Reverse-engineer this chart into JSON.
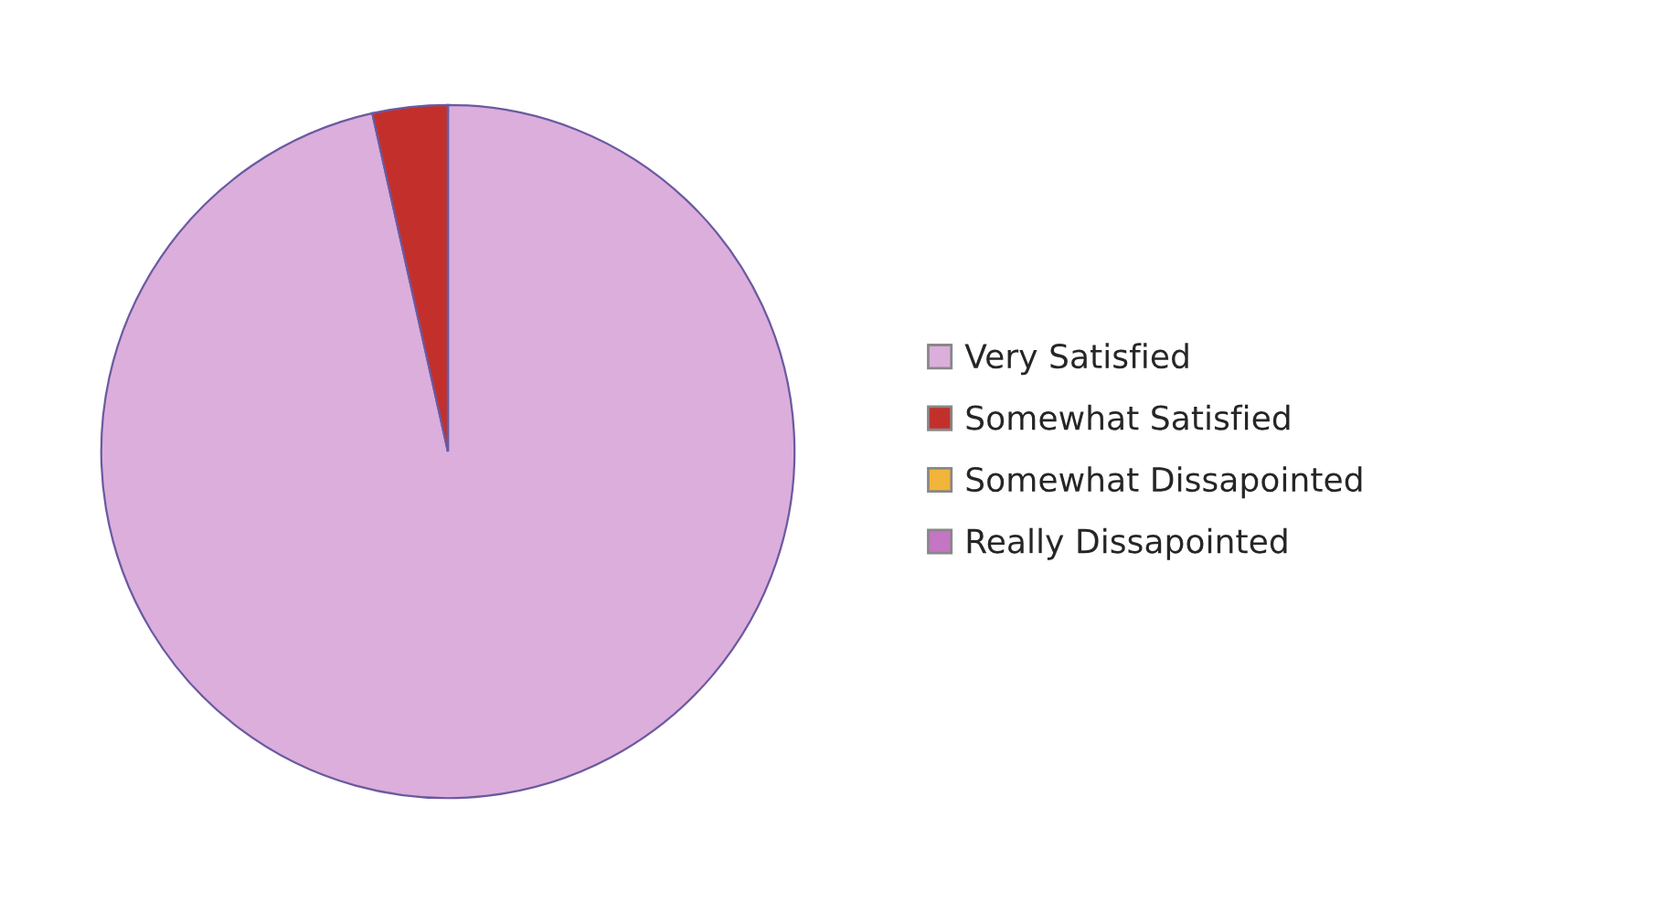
{
  "chart_data": {
    "type": "pie",
    "categories": [
      "Very Satisfied",
      "Somewhat Satisfied",
      "Somewhat Dissapointed",
      "Really Dissapointed"
    ],
    "values": [
      96.5,
      3.5,
      0,
      0
    ],
    "colors": [
      "#dcaedc",
      "#c3302c",
      "#f2b43a",
      "#c475c4"
    ],
    "legend": "right"
  }
}
